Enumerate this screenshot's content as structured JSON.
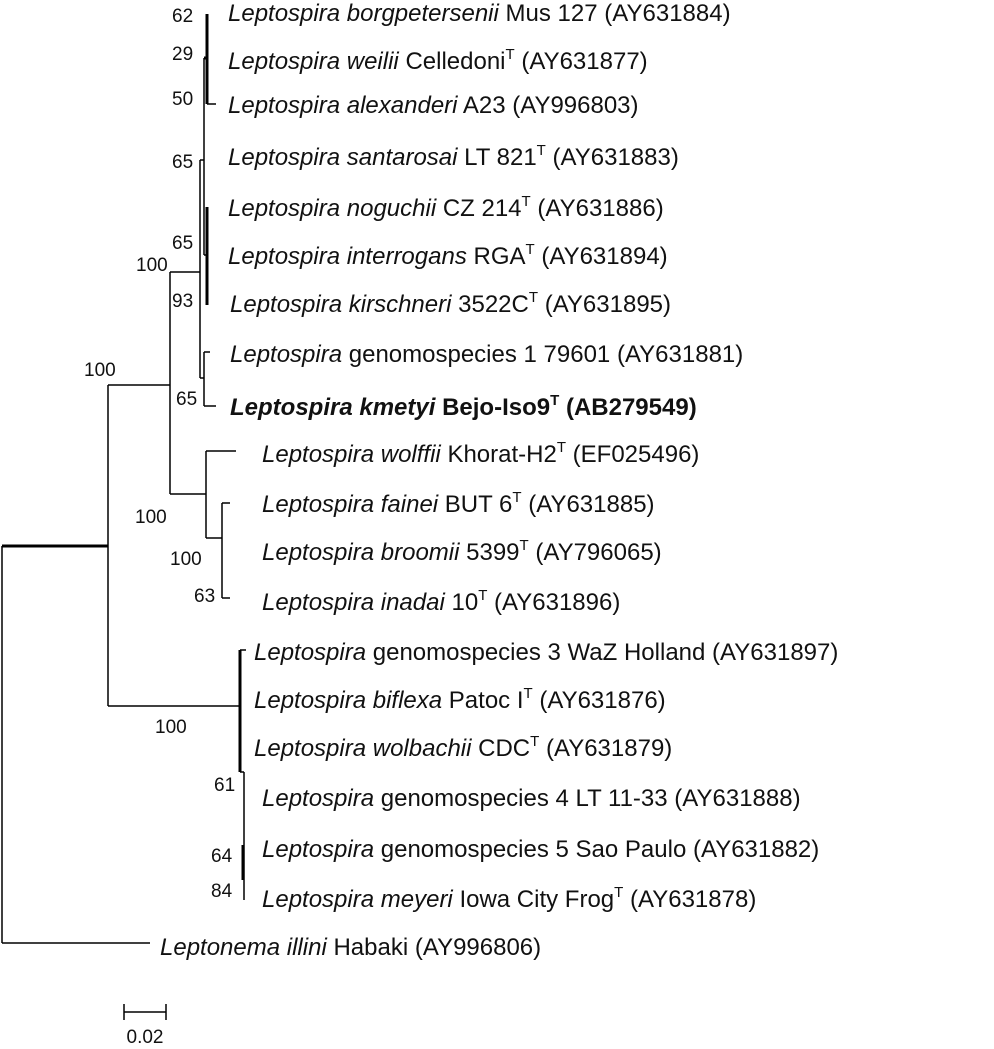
{
  "taxa": [
    {
      "genus": "Leptospira",
      "species": "borgpetersenii",
      "strain": "Mus 127",
      "type_strain": false,
      "accession": "(AY631884)",
      "bold": false
    },
    {
      "genus": "Leptospira",
      "species": "weilii",
      "strain": "Celledoni",
      "type_strain": true,
      "accession": "(AY631877)",
      "bold": false
    },
    {
      "genus": "Leptospira",
      "species": "alexanderi",
      "strain": "A23",
      "type_strain": false,
      "accession": "(AY996803)",
      "bold": false
    },
    {
      "genus": "Leptospira",
      "species": "santarosai",
      "strain": "LT 821",
      "type_strain": true,
      "accession": "(AY631883)",
      "bold": false
    },
    {
      "genus": "Leptospira",
      "species": "noguchii",
      "strain": "CZ 214",
      "type_strain": true,
      "accession": "(AY631886)",
      "bold": false
    },
    {
      "genus": "Leptospira",
      "species": "interrogans",
      "strain": "RGA",
      "type_strain": true,
      "accession": "(AY631894)",
      "bold": false
    },
    {
      "genus": "Leptospira",
      "species": "kirschneri",
      "strain": "3522C",
      "type_strain": true,
      "accession": "(AY631895)",
      "bold": false
    },
    {
      "genus": "Leptospira",
      "species": "",
      "strain": "genomospecies 1 79601",
      "type_strain": false,
      "accession": "(AY631881)",
      "bold": false
    },
    {
      "genus": "Leptospira",
      "species": "kmetyi",
      "strain": "Bejo-Iso9",
      "type_strain": true,
      "accession": "(AB279549)",
      "bold": true
    },
    {
      "genus": "Leptospira",
      "species": "wolffii",
      "strain": "Khorat-H2",
      "type_strain": true,
      "accession": "(EF025496)",
      "bold": false
    },
    {
      "genus": "Leptospira",
      "species": "fainei",
      "strain": "BUT 6",
      "type_strain": true,
      "accession": "(AY631885)",
      "bold": false
    },
    {
      "genus": "Leptospira",
      "species": "broomii",
      "strain": "5399",
      "type_strain": true,
      "accession": "(AY796065)",
      "bold": false
    },
    {
      "genus": "Leptospira",
      "species": "inadai",
      "strain": "10",
      "type_strain": true,
      "accession": "(AY631896)",
      "bold": false
    },
    {
      "genus": "Leptospira",
      "species": "",
      "strain": "genomospecies 3 WaZ Holland",
      "type_strain": false,
      "accession": "(AY631897)",
      "bold": false
    },
    {
      "genus": "Leptospira",
      "species": "biflexa",
      "strain": "Patoc I",
      "type_strain": true,
      "accession": "(AY631876)",
      "bold": false
    },
    {
      "genus": "Leptospira",
      "species": "wolbachii",
      "strain": "CDC",
      "type_strain": true,
      "accession": "(AY631879)",
      "bold": false
    },
    {
      "genus": "Leptospira",
      "species": "",
      "strain": "genomospecies 4 LT 11-33",
      "type_strain": false,
      "accession": "(AY631888)",
      "bold": false
    },
    {
      "genus": "Leptospira",
      "species": "",
      "strain": "genomospecies 5 Sao Paulo",
      "type_strain": false,
      "accession": "(AY631882)",
      "bold": false
    },
    {
      "genus": "Leptospira",
      "species": "meyeri",
      "strain": "Iowa City Frog",
      "type_strain": true,
      "accession": "(AY631878)",
      "bold": false
    },
    {
      "genus": "Leptonema",
      "species": "illini",
      "strain": "Habaki",
      "type_strain": false,
      "accession": "(AY996806)",
      "bold": false
    }
  ],
  "type_strain_mark": "T",
  "bootstrap_values": [
    "62",
    "29",
    "50",
    "65",
    "65",
    "100",
    "93",
    "65",
    "100",
    "100",
    "100",
    "63",
    "100",
    "61",
    "64",
    "84"
  ],
  "scale_bar": {
    "label": "0.02"
  }
}
